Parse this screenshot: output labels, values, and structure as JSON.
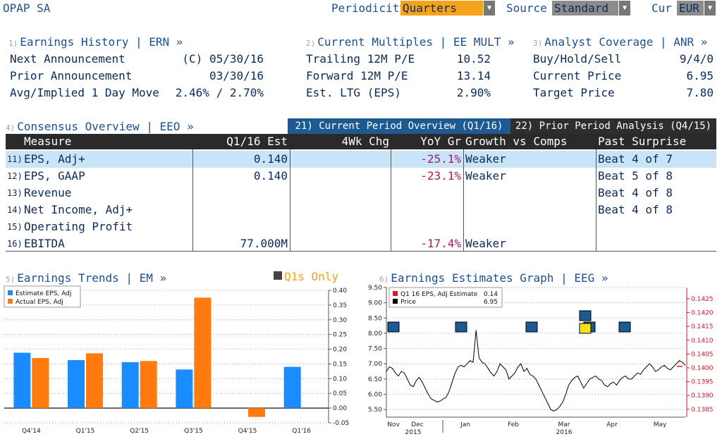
{
  "company": "OPAP SA",
  "topbar": {
    "periodicity_label": "Periodicity",
    "periodicity_value": "Quarters",
    "source_label": "Source",
    "source_value": "Standard",
    "cur_label": "Cur",
    "cur_value": "EUR"
  },
  "earnings_history": {
    "num": "1)",
    "title": "Earnings History | ERN »",
    "rows": [
      {
        "label": "Next Announcement",
        "value": "(C)  05/30/16"
      },
      {
        "label": "Prior Announcement",
        "value": "03/30/16"
      },
      {
        "label": "Avg/Implied 1 Day Move",
        "value": "2.46% / 2.70%"
      }
    ]
  },
  "current_multiples": {
    "num": "2)",
    "title": "Current Multiples | EE MULT »",
    "rows": [
      {
        "label": "Trailing 12M P/E",
        "value": "10.52"
      },
      {
        "label": "Forward 12M P/E",
        "value": "13.14"
      },
      {
        "label": "Est. LTG (EPS)",
        "value": "2.90%"
      }
    ]
  },
  "analyst_coverage": {
    "num": "3)",
    "title": "Analyst Coverage | ANR »",
    "rows": [
      {
        "label": "Buy/Hold/Sell",
        "value": "9/4/0"
      },
      {
        "label": "Current Price",
        "value": "6.95"
      },
      {
        "label": "Target Price",
        "value": "7.80"
      }
    ]
  },
  "consensus": {
    "num": "4)",
    "title": "Consensus Overview | EEO »",
    "tab_current": "21) Current Period Overview (Q1/16)",
    "tab_prior": "22) Prior Period Analysis (Q4/15)",
    "headers": [
      "Measure",
      "Q1/16 Est",
      "4Wk Chg",
      "YoY Gr",
      "Growth vs Comps",
      "Past Surprise"
    ],
    "rows": [
      {
        "num": "11)",
        "measure": "EPS, Adj+",
        "est": "0.140",
        "chg": "",
        "yoy": "-25.1%",
        "comps": "Weaker",
        "surprise": "Beat 4 of 7"
      },
      {
        "num": "12)",
        "measure": "EPS, GAAP",
        "est": "0.140",
        "chg": "",
        "yoy": "-23.1%",
        "comps": "Weaker",
        "surprise": "Beat 5 of 8"
      },
      {
        "num": "13)",
        "measure": "Revenue",
        "est": "",
        "chg": "",
        "yoy": "",
        "comps": "",
        "surprise": "Beat 4 of 8"
      },
      {
        "num": "14)",
        "measure": "Net Income, Adj+",
        "est": "",
        "chg": "",
        "yoy": "",
        "comps": "",
        "surprise": "Beat 4 of 8"
      },
      {
        "num": "15)",
        "measure": "Operating Profit",
        "est": "",
        "chg": "",
        "yoy": "",
        "comps": "",
        "surprise": ""
      },
      {
        "num": "16)",
        "measure": "EBITDA",
        "est": "77.000M",
        "chg": "",
        "yoy": "-17.4%",
        "comps": "Weaker",
        "surprise": ""
      }
    ]
  },
  "earnings_trends": {
    "num": "5)",
    "title": "Earnings Trends | EM »",
    "toggle_label": "Q1s Only"
  },
  "earnings_graph": {
    "num": "6)",
    "title": "Earnings Estimates Graph | EEG »"
  },
  "colors": {
    "estimate": "#1a8cff",
    "actual": "#ff7a0f",
    "price": "#000000",
    "est_line": "#e8101f",
    "accent": "#f7a21b"
  },
  "chart_data": [
    {
      "type": "bar",
      "categories": [
        "Q4'14",
        "Q1'15",
        "Q2'15",
        "Q3'15",
        "Q4'15",
        "Q1'16"
      ],
      "series": [
        {
          "name": "Estimate EPS, Adj",
          "values": [
            0.188,
            0.163,
            0.156,
            0.131,
            null,
            0.14
          ]
        },
        {
          "name": "Actual EPS, Adj",
          "values": [
            0.17,
            0.186,
            0.16,
            0.375,
            -0.03,
            null
          ]
        }
      ],
      "ylim": [
        -0.05,
        0.4
      ],
      "yticks": [
        "0.40",
        "0.35",
        "0.30",
        "0.25",
        "0.20",
        "0.15",
        "0.10",
        "0.05",
        "0.00",
        "-0.05"
      ],
      "grid": true,
      "legend": "top-left"
    },
    {
      "type": "line",
      "legend_items": [
        {
          "name": "Q1 16 EPS, Adj Estimate",
          "value": "0.14"
        },
        {
          "name": "Price",
          "value": "6.95"
        }
      ],
      "x_labels": [
        "Nov",
        "Dec",
        "Jan",
        "Feb",
        "Mar",
        "Apr",
        "May"
      ],
      "year_labels": [
        "2015",
        "2016"
      ],
      "left_ticks": [
        "9.50",
        "9.00",
        "8.50",
        "8.00",
        "7.50",
        "7.00",
        "6.50",
        "6.00",
        "5.50"
      ],
      "left_ylim": [
        5.25,
        9.5
      ],
      "right_ticks": [
        "0.1425",
        "0.1420",
        "0.1415",
        "0.1410",
        "0.1405",
        "0.1400",
        "0.1395",
        "0.1390",
        "0.1385"
      ],
      "price": [
        6.75,
        6.9,
        6.85,
        6.7,
        6.6,
        6.75,
        6.7,
        6.5,
        6.3,
        6.25,
        6.45,
        6.55,
        6.4,
        6.2,
        6.0,
        5.85,
        5.8,
        5.75,
        5.78,
        5.85,
        5.9,
        6.1,
        6.4,
        6.7,
        6.9,
        6.95,
        6.9,
        7.0,
        7.1,
        7.05,
        8.1,
        7.2,
        7.05,
        7.0,
        6.85,
        6.7,
        6.6,
        6.75,
        7.0,
        6.9,
        6.8,
        6.5,
        6.6,
        6.7,
        6.9,
        7.0,
        6.75,
        6.85,
        6.65,
        6.6,
        6.5,
        6.3,
        6.1,
        5.9,
        5.7,
        5.5,
        5.45,
        5.5,
        5.6,
        5.75,
        6.0,
        6.3,
        6.45,
        6.55,
        6.6,
        6.4,
        6.2,
        6.35,
        6.5,
        6.55,
        6.6,
        6.5,
        6.45,
        6.3,
        6.25,
        6.35,
        6.4,
        6.3,
        6.45,
        6.55,
        6.6,
        6.5,
        6.5,
        6.6,
        6.7,
        6.65,
        6.8,
        6.9,
        7.0,
        6.9,
        6.75,
        6.8,
        6.9,
        6.95,
        6.85,
        6.8,
        6.9,
        7.0,
        7.1,
        7.05,
        6.95
      ]
    }
  ]
}
